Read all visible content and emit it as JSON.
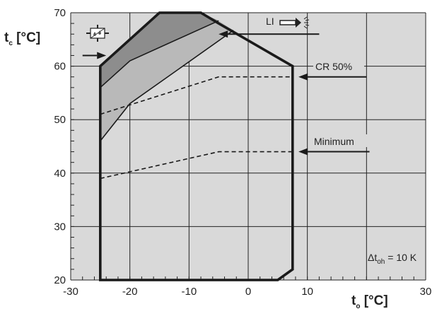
{
  "chart_data": {
    "type": "area",
    "xlabel": {
      "main": "t",
      "sub": "o",
      "unit": " [°C]"
    },
    "ylabel": {
      "main": "t",
      "sub": "c",
      "unit": " [°C]"
    },
    "xlim": [
      -30,
      30
    ],
    "ylim": [
      20,
      70
    ],
    "x_ticks": [
      -30,
      -20,
      -10,
      0,
      10,
      30
    ],
    "y_ticks": [
      20,
      30,
      40,
      50,
      60,
      70
    ],
    "grid": true,
    "envelope": {
      "name": "",
      "points": [
        [
          -25,
          20
        ],
        [
          5,
          20
        ],
        [
          7.5,
          22
        ],
        [
          7.5,
          60
        ],
        [
          -5,
          68
        ],
        [
          -8,
          70
        ],
        [
          -15,
          70
        ],
        [
          -25,
          60
        ],
        [
          -25,
          20
        ]
      ]
    },
    "dark_region": [
      [
        -25,
        60
      ],
      [
        -15,
        70
      ],
      [
        -8,
        70
      ],
      [
        -5,
        68.5
      ],
      [
        -20,
        61
      ],
      [
        -25,
        56
      ]
    ],
    "light_region": [
      [
        -25,
        56
      ],
      [
        -20,
        61
      ],
      [
        -5,
        68.5
      ],
      [
        -2.5,
        66.7
      ],
      [
        -20,
        53
      ],
      [
        -25,
        46
      ]
    ],
    "lines": [
      {
        "name": "upper-boundary",
        "style": "solid",
        "points": [
          [
            -25,
            56
          ],
          [
            -20,
            61
          ],
          [
            -5,
            68.5
          ]
        ]
      },
      {
        "name": "lower-boundary",
        "style": "solid",
        "points": [
          [
            -25,
            46
          ],
          [
            -20,
            53
          ],
          [
            -2.5,
            66.7
          ]
        ]
      },
      {
        "name": "CR 50%",
        "style": "dashed",
        "points": [
          [
            -25,
            51
          ],
          [
            -5,
            58
          ],
          [
            7.5,
            58
          ]
        ]
      },
      {
        "name": "Minimum",
        "style": "dashed",
        "points": [
          [
            -25,
            39
          ],
          [
            -5,
            44
          ],
          [
            7.5,
            44
          ]
        ]
      }
    ],
    "annotations": {
      "li_label": "LI",
      "cr_label": "CR 50%",
      "min_label": "Minimum",
      "delta_prefix": "Δt",
      "delta_sub": "oh",
      "delta_value": " = 10 K"
    },
    "arrows": [
      {
        "name": "injection-arrow",
        "from": [
          -28,
          62
        ],
        "to": [
          -24,
          62
        ]
      },
      {
        "name": "li-arrow",
        "from": [
          12,
          66
        ],
        "to": [
          -5,
          66
        ]
      },
      {
        "name": "cr-arrow",
        "from": [
          20,
          58
        ],
        "to": [
          8.5,
          58
        ]
      },
      {
        "name": "minimum-arrow",
        "from": [
          20.5,
          44
        ],
        "to": [
          8.5,
          44
        ]
      }
    ],
    "colors": {
      "background": "#d9d9d9",
      "grid": "#222222",
      "envelope": "#1a1a1a",
      "dark_fill": "#8d8d8d",
      "light_fill": "#b9b9b9",
      "text": "#222222"
    },
    "icons": [
      "liquid-injection-icon",
      "vapour-injection-icon"
    ]
  }
}
